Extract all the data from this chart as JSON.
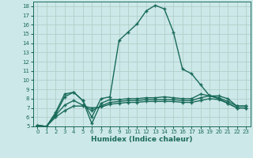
{
  "xlabel": "Humidex (Indice chaleur)",
  "background_color": "#cde8e8",
  "grid_color": "#b0d0c8",
  "line_color": "#1a6b5a",
  "xlim": [
    -0.5,
    23.5
  ],
  "ylim": [
    5,
    18.5
  ],
  "yticks": [
    5,
    6,
    7,
    8,
    9,
    10,
    11,
    12,
    13,
    14,
    15,
    16,
    17,
    18
  ],
  "xticks": [
    0,
    1,
    2,
    3,
    4,
    5,
    6,
    7,
    8,
    9,
    10,
    11,
    12,
    13,
    14,
    15,
    16,
    17,
    18,
    19,
    20,
    21,
    22,
    23
  ],
  "lines": [
    {
      "x": [
        0,
        1,
        2,
        3,
        4,
        5,
        6,
        7,
        8,
        9,
        10,
        11,
        12,
        13,
        14,
        15,
        16,
        17,
        18,
        19,
        20,
        21,
        22,
        23
      ],
      "y": [
        5.1,
        5.0,
        6.5,
        8.5,
        8.7,
        7.8,
        6.0,
        8.0,
        8.2,
        14.3,
        15.2,
        16.1,
        17.5,
        18.1,
        17.7,
        15.2,
        11.2,
        10.7,
        9.5,
        8.3,
        8.0,
        7.5,
        7.0,
        7.0
      ],
      "linewidth": 1.0,
      "marker": "+",
      "markersize": 3.5
    },
    {
      "x": [
        0,
        1,
        2,
        3,
        4,
        5,
        6,
        7,
        8,
        9,
        10,
        11,
        12,
        13,
        14,
        15,
        16,
        17,
        18,
        19,
        20,
        21,
        22,
        23
      ],
      "y": [
        5.1,
        5.0,
        6.3,
        8.2,
        8.7,
        7.8,
        5.3,
        7.5,
        7.9,
        7.9,
        8.0,
        8.0,
        8.1,
        8.1,
        8.2,
        8.1,
        8.0,
        8.0,
        8.5,
        8.3,
        8.3,
        8.0,
        7.2,
        7.2
      ],
      "linewidth": 1.0,
      "marker": "+",
      "markersize": 3.5
    },
    {
      "x": [
        0,
        1,
        2,
        3,
        4,
        5,
        6,
        7,
        8,
        9,
        10,
        11,
        12,
        13,
        14,
        15,
        16,
        17,
        18,
        19,
        20,
        21,
        22,
        23
      ],
      "y": [
        5.1,
        5.0,
        6.2,
        7.3,
        7.8,
        7.3,
        6.7,
        7.2,
        7.6,
        7.7,
        7.8,
        7.8,
        7.9,
        7.9,
        7.9,
        7.9,
        7.8,
        7.8,
        8.1,
        8.3,
        8.1,
        7.7,
        7.2,
        7.2
      ],
      "linewidth": 1.0,
      "marker": "+",
      "markersize": 3.5
    },
    {
      "x": [
        0,
        1,
        2,
        3,
        4,
        5,
        6,
        7,
        8,
        9,
        10,
        11,
        12,
        13,
        14,
        15,
        16,
        17,
        18,
        19,
        20,
        21,
        22,
        23
      ],
      "y": [
        5.1,
        5.0,
        6.0,
        6.7,
        7.2,
        7.2,
        7.0,
        7.1,
        7.4,
        7.5,
        7.6,
        7.6,
        7.7,
        7.7,
        7.7,
        7.7,
        7.6,
        7.6,
        7.8,
        8.0,
        7.9,
        7.5,
        7.0,
        7.0
      ],
      "linewidth": 1.0,
      "marker": "+",
      "markersize": 3.5
    }
  ]
}
